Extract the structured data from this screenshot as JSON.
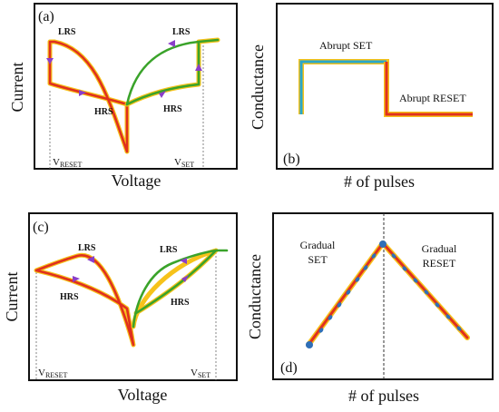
{
  "panels": {
    "a": {
      "label": "(a)",
      "y_title": "Current",
      "x_title": "Voltage",
      "lrs_left": "LRS",
      "lrs_right": "LRS",
      "hrs_left": "HRS",
      "hrs_right": "HRS",
      "v_reset_main": "V",
      "v_reset_sub": "RESET",
      "v_set_main": "V",
      "v_set_sub": "SET"
    },
    "b": {
      "label": "(b)",
      "y_title": "Conductance",
      "x_title": "# of pulses",
      "set_note": "Abrupt SET",
      "reset_note": "Abrupt RESET"
    },
    "c": {
      "label": "(c)",
      "y_title": "Current",
      "x_title": "Voltage",
      "lrs_left": "LRS",
      "lrs_right": "LRS",
      "hrs_left": "HRS",
      "hrs_right": "HRS",
      "v_reset_main": "V",
      "v_reset_sub": "RESET",
      "v_set_main": "V",
      "v_set_sub": "SET"
    },
    "d": {
      "label": "(d)",
      "y_title": "Conductance",
      "x_title": "# of pulses",
      "set_note_line1": "Gradual",
      "set_note_line2": "SET",
      "reset_note_line1": "Gradual",
      "reset_note_line2": "RESET"
    }
  },
  "colors": {
    "red_trace": "#e0301e",
    "green_trace": "#3aa32a",
    "glow": "#f6c21a",
    "arrow": "#8a3ec9",
    "dot": "#2f6fb8"
  }
}
